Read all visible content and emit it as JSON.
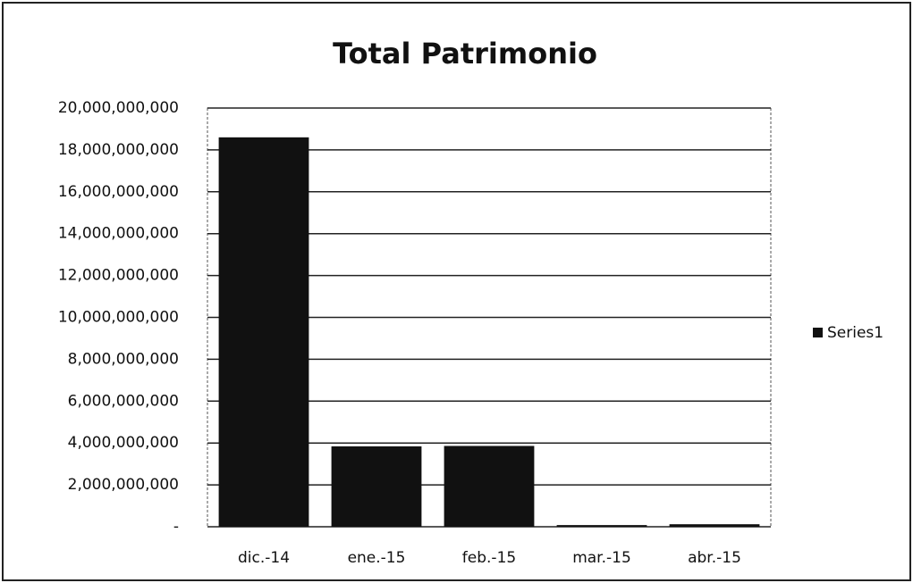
{
  "chart_data": {
    "type": "bar",
    "title": "Total Patrimonio",
    "categories": [
      "dic.-14",
      "ene.-15",
      "feb.-15",
      "mar.-15",
      "abr.-15"
    ],
    "series": [
      {
        "name": "Series1",
        "color": "#111111",
        "values": [
          18600000000,
          3840000000,
          3860000000,
          80000000,
          120000000
        ]
      }
    ],
    "ylim": [
      0,
      20000000000
    ],
    "yticks": [
      {
        "value": 0,
        "label": "-"
      },
      {
        "value": 2000000000,
        "label": "2,000,000,000"
      },
      {
        "value": 4000000000,
        "label": "4,000,000,000"
      },
      {
        "value": 6000000000,
        "label": "6,000,000,000"
      },
      {
        "value": 8000000000,
        "label": "8,000,000,000"
      },
      {
        "value": 10000000000,
        "label": "10,000,000,000"
      },
      {
        "value": 12000000000,
        "label": "12,000,000,000"
      },
      {
        "value": 14000000000,
        "label": "14,000,000,000"
      },
      {
        "value": 16000000000,
        "label": "16,000,000,000"
      },
      {
        "value": 18000000000,
        "label": "18,000,000,000"
      },
      {
        "value": 20000000000,
        "label": "20,000,000,000"
      }
    ],
    "grid": true,
    "legend": "right"
  }
}
